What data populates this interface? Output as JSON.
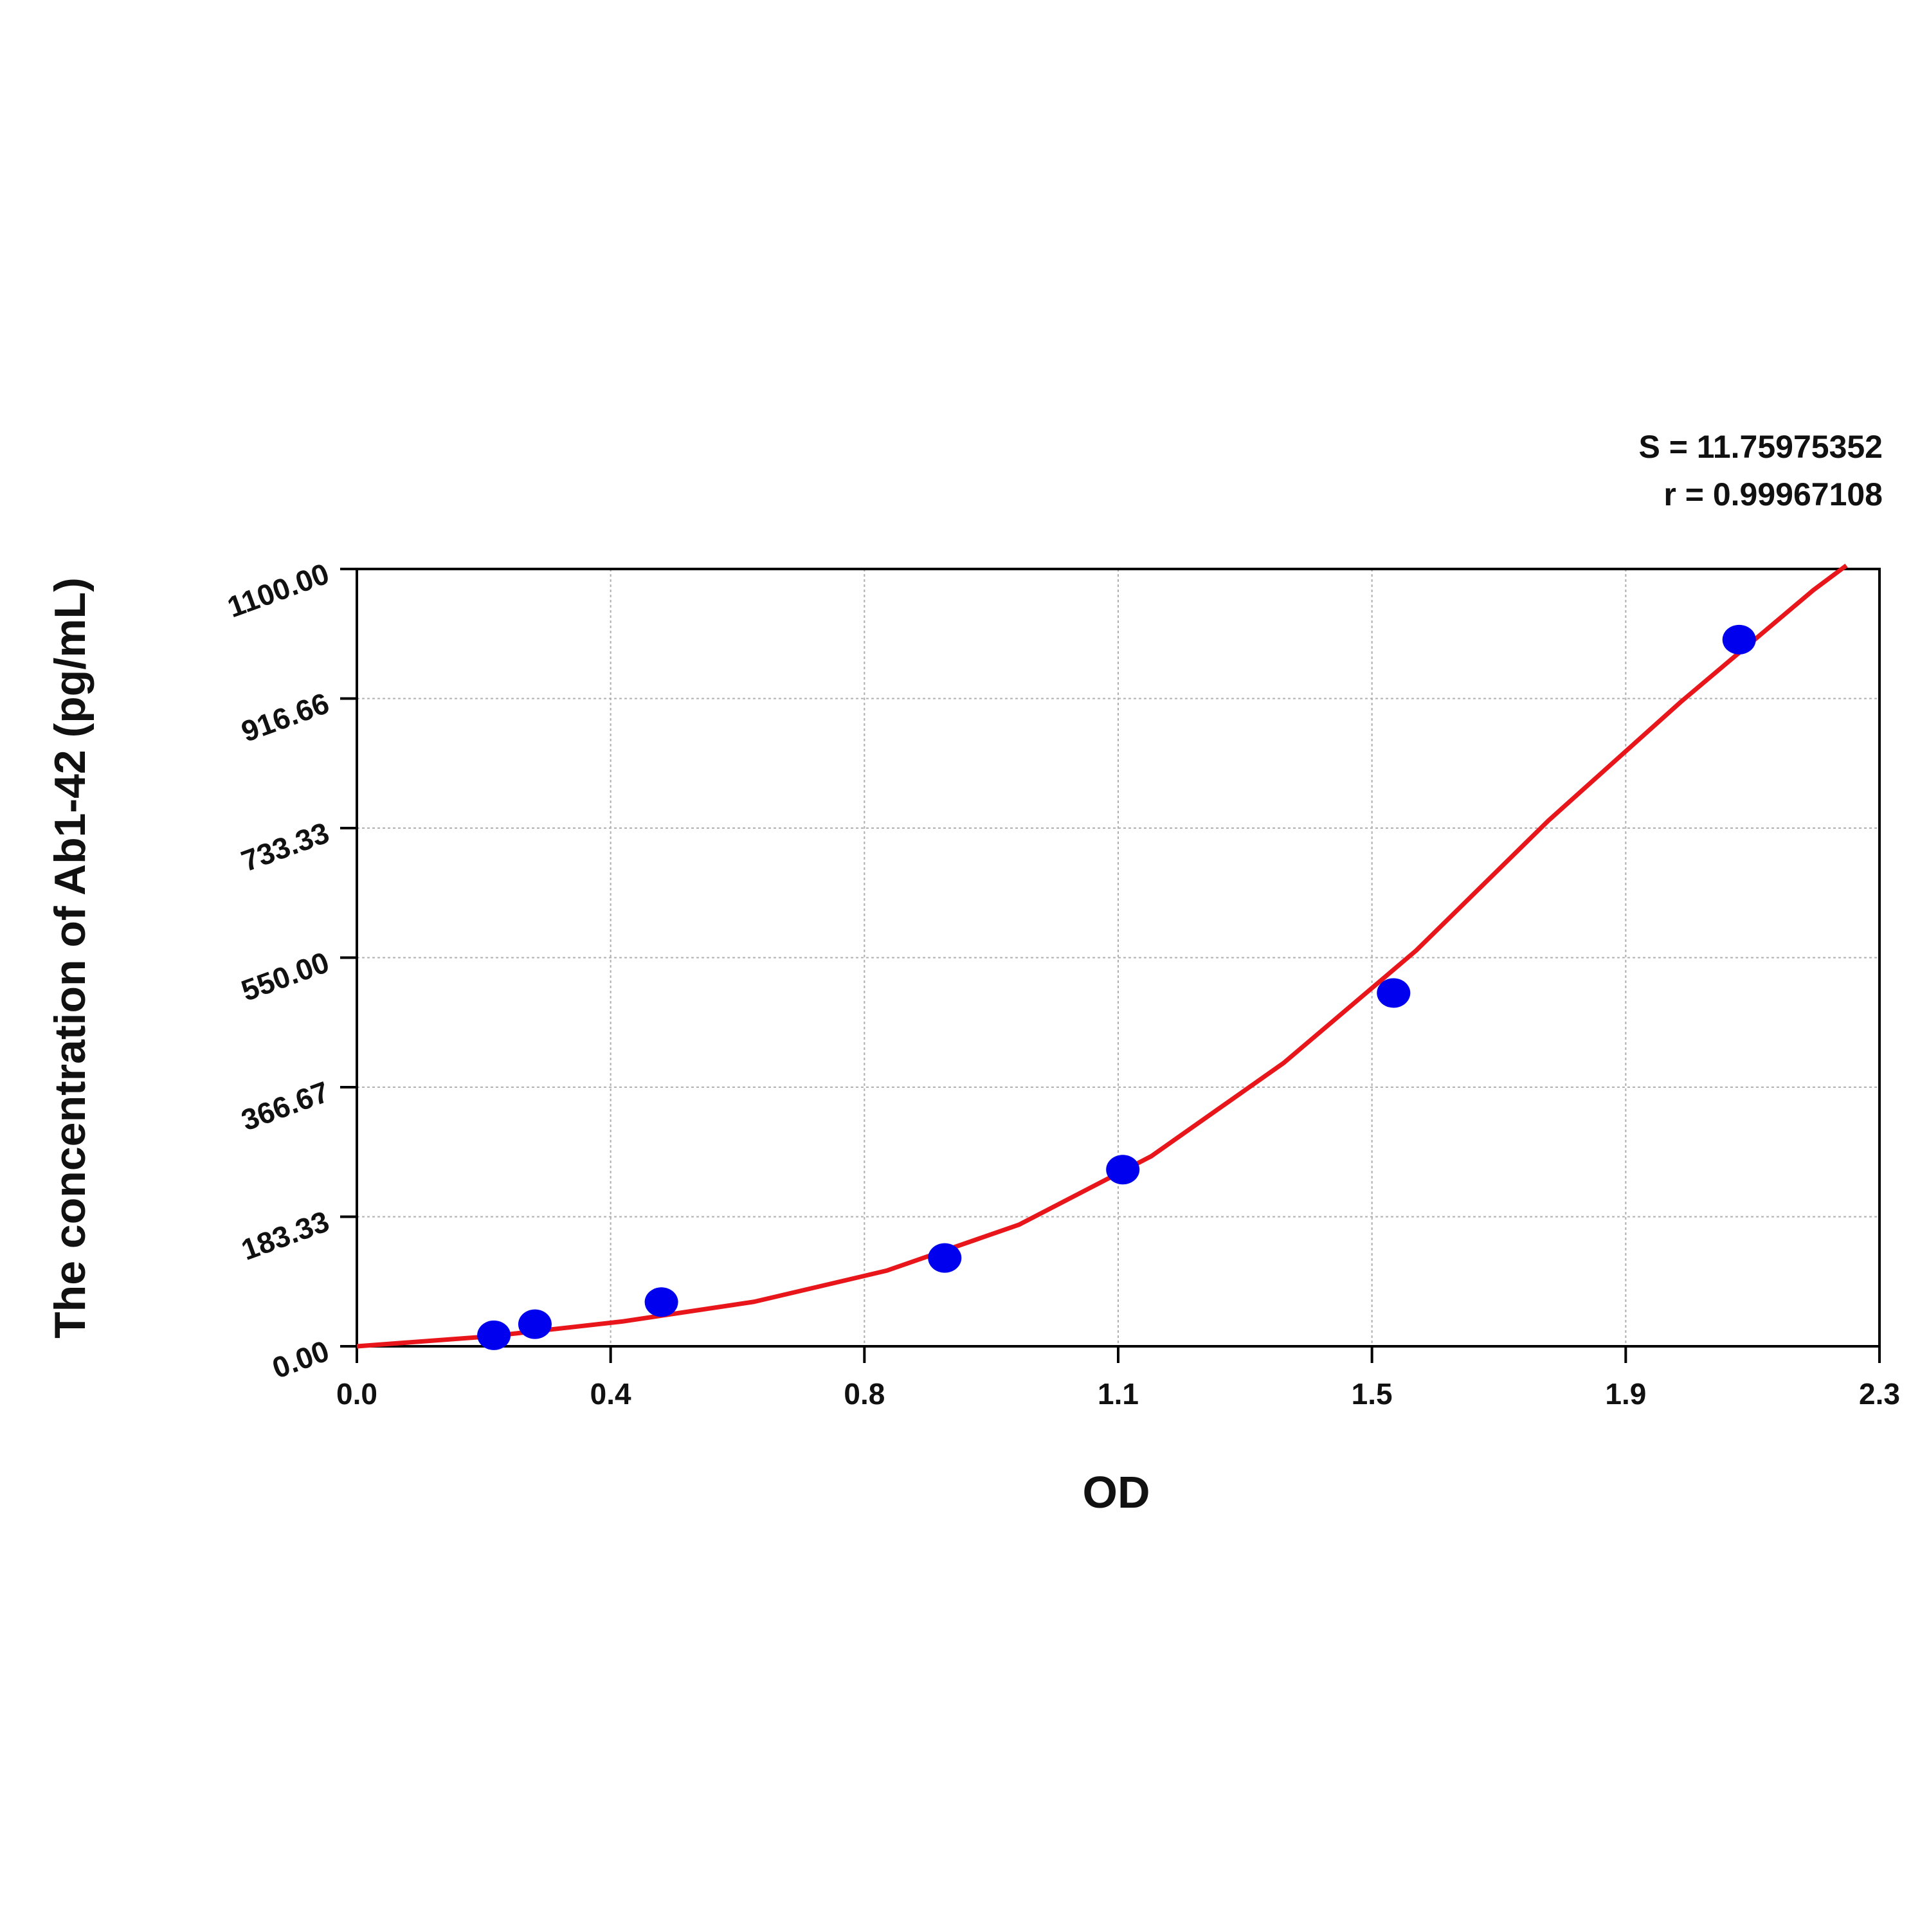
{
  "chart_data": {
    "type": "scatter",
    "x_label": "OD",
    "y_label": "The concentration of Ab1-42 (pg/mL)",
    "annotations": [
      "S = 11.75975352",
      "r = 0.99967108"
    ],
    "xlim": [
      0,
      2.3
    ],
    "xticks": [
      {
        "value": 0,
        "label": "0.0"
      },
      {
        "value": 0.38333,
        "label": "0.4"
      },
      {
        "value": 0.76667,
        "label": "0.8"
      },
      {
        "value": 1.15,
        "label": "1.1"
      },
      {
        "value": 1.53333,
        "label": "1.5"
      },
      {
        "value": 1.91667,
        "label": "1.9"
      },
      {
        "value": 2.3,
        "label": "2.3"
      }
    ],
    "ylim": [
      0,
      1100
    ],
    "yticks": [
      {
        "value": 0,
        "label": "0.00"
      },
      183.33,
      366.67,
      {
        "value": 550,
        "label": "550.00"
      },
      733.33,
      916.66,
      {
        "value": 1100,
        "label": "1100.00"
      }
    ],
    "grid": true,
    "series": [
      {
        "style": "markers",
        "color": "#0000ee",
        "x": [
          0.207,
          0.269,
          0.46,
          0.888,
          1.157,
          1.566,
          2.088
        ],
        "values": [
          15.6,
          31.25,
          62.5,
          125,
          250,
          500,
          1000
        ]
      },
      {
        "style": "line",
        "color": "#e8161b",
        "x": [
          0,
          0.2,
          0.4,
          0.6,
          0.8,
          1.0,
          1.2,
          1.4,
          1.6,
          1.8,
          2.0,
          2.2,
          2.25
        ],
        "values": [
          0,
          14,
          35,
          63,
          107,
          172,
          269,
          401,
          560,
          744,
          912,
          1070,
          1105
        ]
      }
    ]
  }
}
